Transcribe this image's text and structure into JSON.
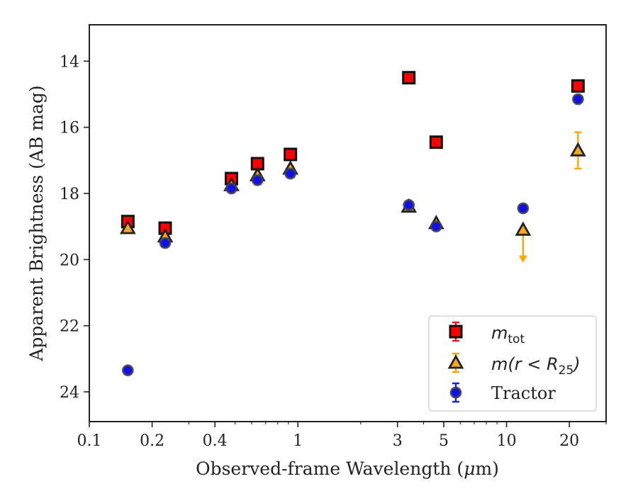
{
  "chart_data": {
    "type": "scatter",
    "xlabel": "Observed-frame Wavelength (",
    "xlabel_mu": "μ",
    "xlabel_tail": "m)",
    "ylabel": "Apparent Brightness (AB mag)",
    "xscale": "log",
    "xlim": [
      0.1,
      30
    ],
    "ylim": [
      24.9,
      12.9
    ],
    "y_inverted": true,
    "grid": false,
    "legend_position": "lower-right",
    "x_ticks": [
      {
        "value": 0.1,
        "label": "0.1"
      },
      {
        "value": 0.2,
        "label": "0.2"
      },
      {
        "value": 0.4,
        "label": "0.4"
      },
      {
        "value": 1,
        "label": "1"
      },
      {
        "value": 3,
        "label": "3"
      },
      {
        "value": 5,
        "label": "5"
      },
      {
        "value": 10,
        "label": "10"
      },
      {
        "value": 20,
        "label": "20"
      }
    ],
    "y_ticks": [
      {
        "value": 14,
        "label": "14"
      },
      {
        "value": 16,
        "label": "16"
      },
      {
        "value": 18,
        "label": "18"
      },
      {
        "value": 20,
        "label": "20"
      },
      {
        "value": 22,
        "label": "22"
      },
      {
        "value": 24,
        "label": "24"
      }
    ],
    "series": [
      {
        "key": "mtot",
        "legend_main": "m",
        "legend_sub": "tot",
        "marker": "square",
        "color": "#ff0000",
        "edge": "#111111",
        "errcolor": "#e31a1c",
        "points": [
          {
            "x": 0.153,
            "y": 18.85
          },
          {
            "x": 0.231,
            "y": 19.05
          },
          {
            "x": 0.48,
            "y": 17.55
          },
          {
            "x": 0.64,
            "y": 17.1
          },
          {
            "x": 0.92,
            "y": 16.82
          },
          {
            "x": 3.4,
            "y": 14.5
          },
          {
            "x": 4.6,
            "y": 16.45
          },
          {
            "x": 22.0,
            "y": 14.75
          }
        ]
      },
      {
        "key": "mr25",
        "legend_main": "m(r < R",
        "legend_sub": "25",
        "legend_close": ")",
        "marker": "triangle",
        "color": "#f5a623",
        "edge": "#222222",
        "errcolor": "#ffa500",
        "points": [
          {
            "x": 0.153,
            "y": 19.05
          },
          {
            "x": 0.231,
            "y": 19.3
          },
          {
            "x": 0.48,
            "y": 17.75
          },
          {
            "x": 0.64,
            "y": 17.45
          },
          {
            "x": 0.92,
            "y": 17.25
          },
          {
            "x": 3.4,
            "y": 18.4
          },
          {
            "x": 4.6,
            "y": 18.9
          },
          {
            "x": 12.0,
            "y": 19.1,
            "upper_limit": true,
            "limit_to": 20.05
          },
          {
            "x": 22.0,
            "y": 16.7,
            "yerr": 0.55
          }
        ]
      },
      {
        "key": "tractor",
        "legend_main": "Tractor",
        "marker": "circle",
        "color": "#1010ee",
        "edge": "#444444",
        "errcolor": "#1a1aff",
        "points": [
          {
            "x": 0.153,
            "y": 23.35
          },
          {
            "x": 0.231,
            "y": 19.5
          },
          {
            "x": 0.48,
            "y": 17.85
          },
          {
            "x": 0.64,
            "y": 17.6
          },
          {
            "x": 0.92,
            "y": 17.4
          },
          {
            "x": 3.4,
            "y": 18.35
          },
          {
            "x": 4.6,
            "y": 19.0
          },
          {
            "x": 12.0,
            "y": 18.45
          },
          {
            "x": 22.0,
            "y": 15.15
          }
        ]
      }
    ]
  }
}
